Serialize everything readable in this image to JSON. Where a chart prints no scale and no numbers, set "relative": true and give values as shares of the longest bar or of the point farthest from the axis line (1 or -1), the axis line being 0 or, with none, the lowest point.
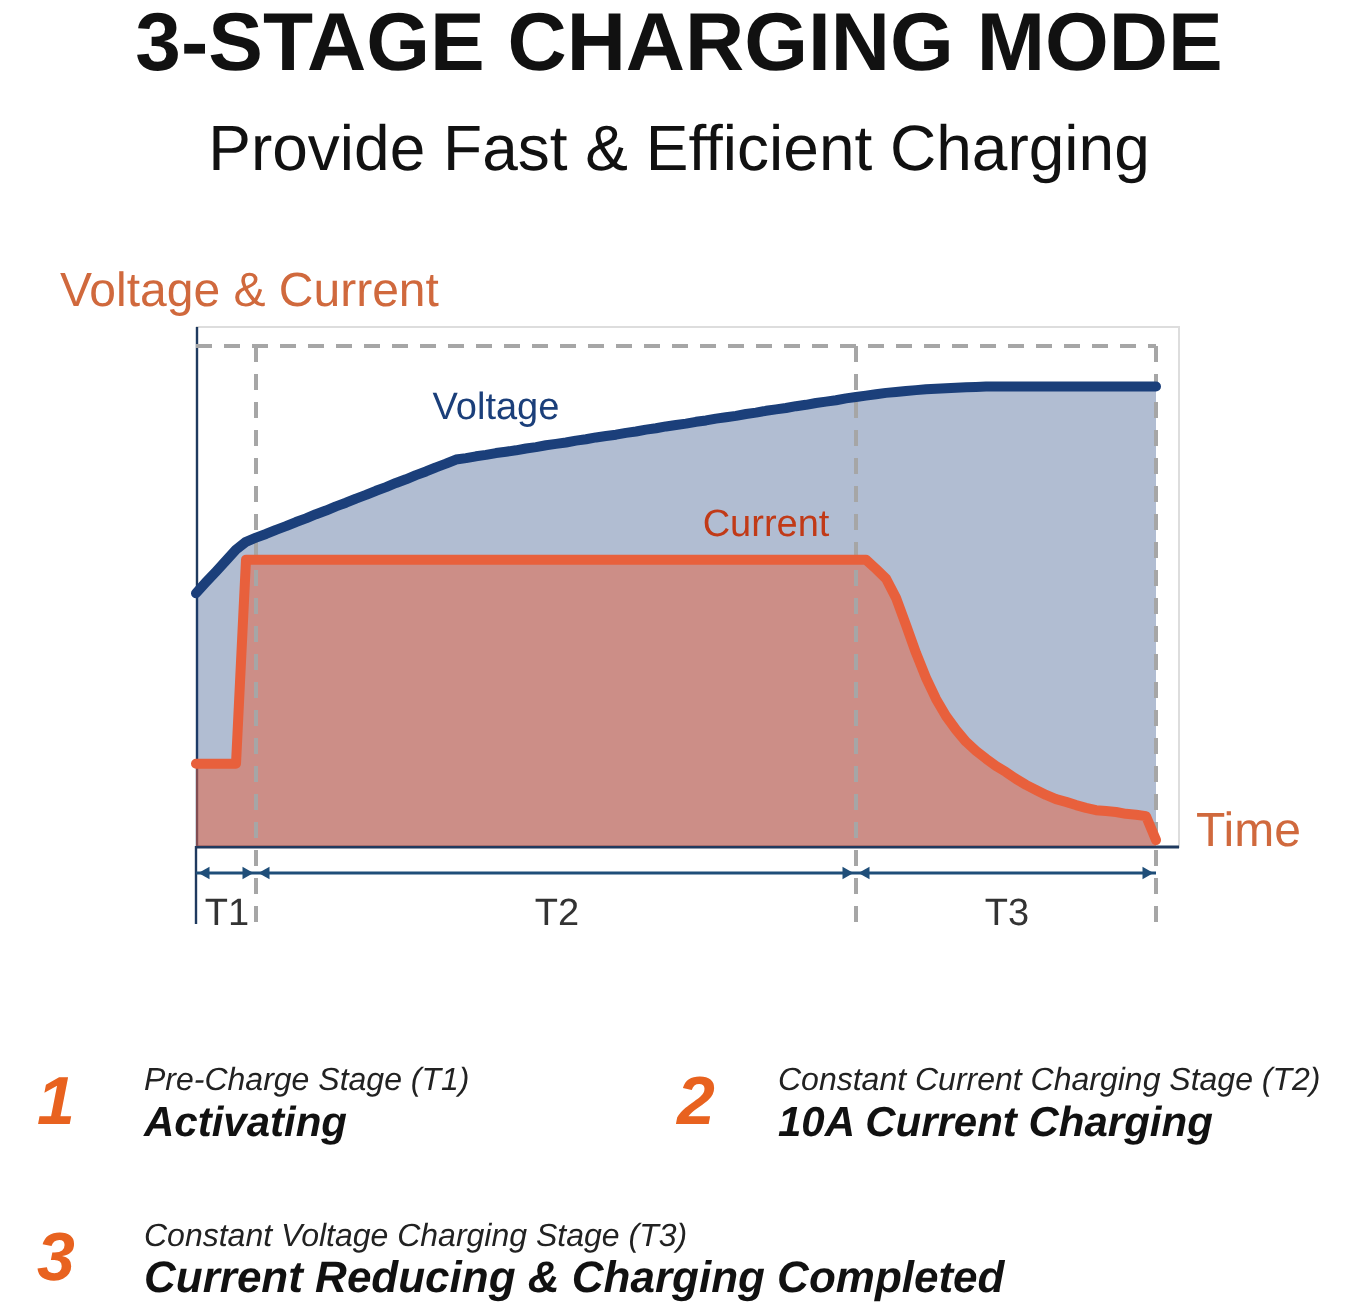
{
  "chart_data": {
    "type": "area",
    "title": "3-STAGE CHARGING MODE",
    "subtitle": "Provide Fast & Efficient Charging",
    "relative": true,
    "tick_labels": "x",
    "categories": [
      null,
      null,
      null,
      "T1",
      null,
      null,
      null,
      null,
      null,
      null,
      null,
      null,
      null,
      null,
      null,
      null,
      null,
      null,
      null,
      null,
      null,
      null,
      null,
      null,
      null,
      null,
      null,
      null,
      null,
      null,
      null,
      null,
      null,
      null,
      null,
      null,
      "T2",
      null,
      null,
      null,
      null,
      null,
      null,
      null,
      null,
      null,
      null,
      null,
      null,
      null,
      null,
      null,
      null,
      null,
      null,
      null,
      null,
      null,
      null,
      null,
      null,
      null,
      null,
      null,
      null,
      null,
      null,
      null,
      null,
      null,
      null,
      null,
      null,
      null,
      null,
      null,
      null,
      null,
      null,
      null,
      null,
      "T3",
      null,
      null,
      null,
      null,
      null,
      null,
      null,
      null,
      null,
      null,
      null,
      null,
      null,
      null,
      null
    ],
    "series": [
      {
        "name": "Voltage",
        "color": "#1b3f7a",
        "values": [
          0.55,
          0.574,
          0.597,
          0.621,
          0.645,
          0.662,
          0.671,
          0.679,
          0.688,
          0.696,
          0.705,
          0.713,
          0.722,
          0.73,
          0.739,
          0.747,
          0.756,
          0.764,
          0.773,
          0.781,
          0.79,
          0.798,
          0.807,
          0.815,
          0.824,
          0.832,
          0.841,
          0.844,
          0.848,
          0.851,
          0.855,
          0.858,
          0.861,
          0.865,
          0.868,
          0.872,
          0.875,
          0.878,
          0.882,
          0.885,
          0.889,
          0.892,
          0.895,
          0.899,
          0.902,
          0.906,
          0.909,
          0.913,
          0.916,
          0.919,
          0.923,
          0.926,
          0.93,
          0.933,
          0.936,
          0.94,
          0.943,
          0.947,
          0.95,
          0.953,
          0.957,
          0.96,
          0.964,
          0.967,
          0.97,
          0.974,
          0.977,
          0.98,
          0.983,
          0.986,
          0.988,
          0.99,
          0.992,
          0.994,
          0.995,
          0.996,
          0.997,
          0.998,
          0.999,
          1.0,
          1.0,
          1.0,
          1.0,
          1.0,
          1.0,
          1.0,
          1.0,
          1.0,
          1.0,
          1.0,
          1.0,
          1.0,
          1.0,
          1.0,
          1.0,
          1.0,
          1.0
        ]
      },
      {
        "name": "Current",
        "color": "#e8603c",
        "values": [
          0.179,
          0.179,
          0.179,
          0.179,
          0.179,
          0.623,
          0.623,
          0.623,
          0.623,
          0.623,
          0.623,
          0.623,
          0.623,
          0.623,
          0.623,
          0.623,
          0.623,
          0.623,
          0.623,
          0.623,
          0.623,
          0.623,
          0.623,
          0.623,
          0.623,
          0.623,
          0.623,
          0.623,
          0.623,
          0.623,
          0.623,
          0.623,
          0.623,
          0.623,
          0.623,
          0.623,
          0.623,
          0.623,
          0.623,
          0.623,
          0.623,
          0.623,
          0.623,
          0.623,
          0.623,
          0.623,
          0.623,
          0.623,
          0.623,
          0.623,
          0.623,
          0.623,
          0.623,
          0.623,
          0.623,
          0.623,
          0.623,
          0.623,
          0.623,
          0.623,
          0.623,
          0.623,
          0.623,
          0.623,
          0.623,
          0.623,
          0.623,
          0.623,
          0.603,
          0.582,
          0.54,
          0.481,
          0.42,
          0.366,
          0.32,
          0.283,
          0.253,
          0.227,
          0.207,
          0.19,
          0.174,
          0.161,
          0.146,
          0.133,
          0.122,
          0.111,
          0.102,
          0.096,
          0.089,
          0.083,
          0.078,
          0.076,
          0.074,
          0.07,
          0.068,
          0.065,
          0.013
        ]
      }
    ],
    "ref_lines": [
      {
        "axis": "y",
        "value": 1.088,
        "line_style": "dashed"
      }
    ],
    "annotations": [
      "Voltage & Current",
      "Time",
      "1",
      "Pre-Charge Stage (T1)",
      "Activating",
      "2",
      "Constant Current Charging Stage (T2)",
      "10A Current Charging",
      "3",
      "Constant Voltage Charging Stage (T3)",
      "Current Reducing & Charging Completed"
    ]
  }
}
